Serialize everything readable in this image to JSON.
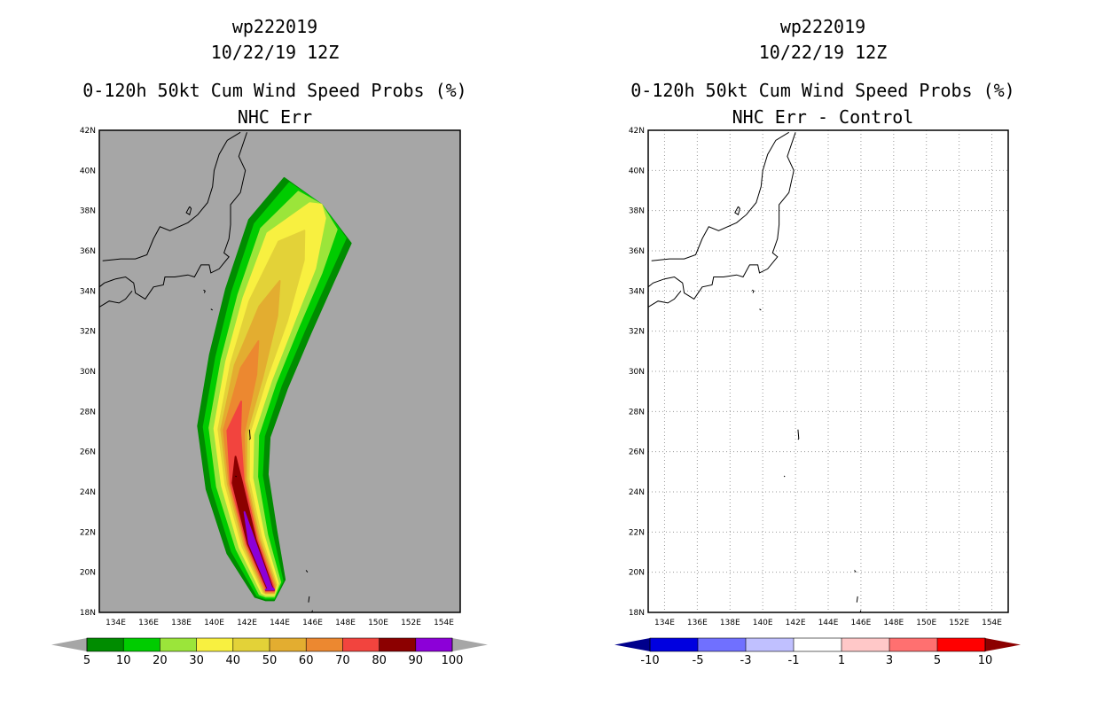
{
  "chart_data": [
    {
      "type": "heatmap",
      "title_lines": [
        "wp222019",
        "10/22/19 12Z",
        "0-120h 50kt Cum Wind Speed Probs (%)",
        "NHC Err"
      ],
      "xlim": [
        133,
        155
      ],
      "ylim": [
        18,
        42
      ],
      "x_ticks": [
        "134E",
        "136E",
        "138E",
        "140E",
        "142E",
        "144E",
        "146E",
        "148E",
        "150E",
        "152E",
        "154E"
      ],
      "y_ticks": [
        "18N",
        "20N",
        "22N",
        "24N",
        "26N",
        "28N",
        "30N",
        "32N",
        "34N",
        "36N",
        "38N",
        "40N",
        "42N"
      ],
      "background_color": "#a6a6a6",
      "track": [
        [
          143.4,
          19.2
        ],
        [
          142.3,
          21.5
        ],
        [
          141.4,
          24.5
        ],
        [
          141.2,
          27
        ],
        [
          142.1,
          30
        ],
        [
          143.3,
          33
        ],
        [
          144.7,
          36
        ],
        [
          146.3,
          38
        ]
      ],
      "contour_levels": [
        {
          "threshold": 5,
          "color": "#008c00",
          "hw": [
            1.0,
            1.6,
            1.9,
            2.2,
            2.5,
            2.8,
            3.0,
            2.6
          ]
        },
        {
          "threshold": 10,
          "color": "#00cc00",
          "hw": [
            0.85,
            1.3,
            1.55,
            1.85,
            2.1,
            2.4,
            2.6,
            2.2
          ]
        },
        {
          "threshold": 20,
          "color": "#9be53a",
          "hw": [
            0.7,
            1.0,
            1.25,
            1.5,
            1.75,
            2.0,
            2.15,
            1.5
          ]
        },
        {
          "threshold": 30,
          "color": "#f8f040",
          "hw": [
            0.55,
            0.8,
            0.95,
            1.2,
            1.45,
            1.65,
            1.7,
            0.6
          ]
        },
        {
          "threshold": 40,
          "color": "#e3d238",
          "hw": [
            0.45,
            0.62,
            0.72,
            0.95,
            1.15,
            1.25,
            0.9,
            0
          ]
        },
        {
          "threshold": 50,
          "color": "#e3ad30",
          "hw": [
            0.38,
            0.5,
            0.58,
            0.78,
            0.9,
            0.6,
            0,
            0
          ]
        },
        {
          "threshold": 60,
          "color": "#ec8830",
          "hw": [
            0.3,
            0.42,
            0.48,
            0.62,
            0.5,
            0,
            0,
            0
          ]
        },
        {
          "threshold": 70,
          "color": "#f2443e",
          "hw": [
            0.22,
            0.34,
            0.4,
            0.4,
            0,
            0,
            0,
            0
          ]
        },
        {
          "threshold": 80,
          "color": "#8c0000",
          "hw": [
            0.15,
            0.26,
            0.28,
            0,
            0,
            0,
            0,
            0
          ]
        },
        {
          "threshold": 90,
          "color": "#8c00d8",
          "hw": [
            0.1,
            0.18,
            0,
            0,
            0,
            0,
            0,
            0
          ]
        }
      ],
      "colorbar": {
        "labels": [
          "5",
          "10",
          "20",
          "30",
          "40",
          "50",
          "60",
          "70",
          "80",
          "90",
          "100"
        ],
        "colors": [
          "#008c00",
          "#00cc00",
          "#9be53a",
          "#f8f040",
          "#e3d238",
          "#e3ad30",
          "#ec8830",
          "#f2443e",
          "#8c0000",
          "#8c00d8"
        ],
        "under_color": "#a6a6a6",
        "over_color": "#a6a6a6"
      }
    },
    {
      "type": "heatmap",
      "title_lines": [
        "wp222019",
        "10/22/19 12Z",
        "0-120h 50kt Cum Wind Speed Probs (%)",
        "NHC Err - Control"
      ],
      "xlim": [
        133,
        155
      ],
      "ylim": [
        18,
        42
      ],
      "x_ticks": [
        "134E",
        "136E",
        "138E",
        "140E",
        "142E",
        "144E",
        "146E",
        "148E",
        "150E",
        "152E",
        "154E"
      ],
      "y_ticks": [
        "18N",
        "20N",
        "22N",
        "24N",
        "26N",
        "28N",
        "30N",
        "32N",
        "34N",
        "36N",
        "38N",
        "40N",
        "42N"
      ],
      "background_color": "#ffffff",
      "grid": "dotted",
      "contour_levels": [],
      "colorbar": {
        "labels": [
          "-10",
          "-5",
          "-3",
          "-1",
          "1",
          "3",
          "5",
          "10"
        ],
        "colors": [
          "#0000e0",
          "#7070ff",
          "#c0c0ff",
          "#ffffff",
          "#ffc8c8",
          "#ff7070",
          "#ff0000"
        ],
        "under_color": "#00008c",
        "over_color": "#8c0000"
      }
    }
  ]
}
